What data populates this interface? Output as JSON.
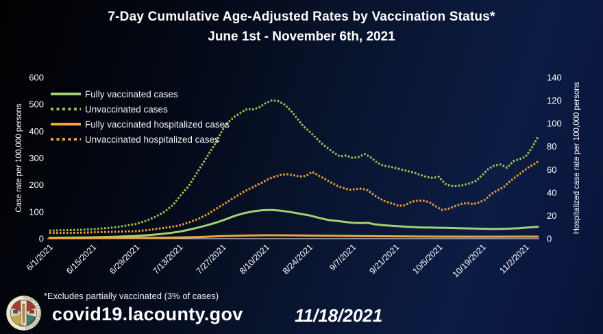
{
  "title": {
    "line1": "7-Day Cumulative Age-Adjusted Rates by Vaccination Status*",
    "line2": "June 1st - November 6th, 2021"
  },
  "footer": {
    "footnote": "*Excludes partially vaccinated (3% of cases)",
    "site": "covid19.lacounty.gov",
    "date": "11/18/2021",
    "seal": {
      "name": "County of Los Angeles seal",
      "text_top": "COUNTY OF LOS ANGELES",
      "text_bottom": "CALIFORNIA"
    }
  },
  "colors": {
    "background_navy": "#0c1c44",
    "background_black": "#010102",
    "text": "#ffffff",
    "axis_line": "#c9cfdf",
    "green_solid": "#a5d075",
    "green_dotted": "#9cc654",
    "orange_solid": "#f0a63c",
    "orange_dotted": "#e9a23a"
  },
  "chart_data": {
    "type": "line",
    "title": "7-Day Cumulative Age-Adjusted Rates by Vaccination Status, June 1st - November 6th, 2021",
    "grid": false,
    "legend_position": "top-left",
    "x_range": [
      "6/1/2021",
      "11/6/2021"
    ],
    "x_tick_labels": [
      "6/1/2021",
      "6/15/2021",
      "6/29/2021",
      "7/13/2021",
      "7/27/2021",
      "8/10/2021",
      "8/24/2021",
      "9/7/2021",
      "9/21/2021",
      "10/5/2021",
      "10/19/2021",
      "11/2/2021"
    ],
    "left_axis": {
      "label": "Case rate per 100,000 persons",
      "min": 0,
      "max": 600,
      "tick_step": 100,
      "ticks": [
        "0",
        "100",
        "200",
        "300",
        "400",
        "500",
        "600"
      ]
    },
    "right_axis": {
      "label": "Hospitalized case rate per 100,000 persons",
      "min": 0,
      "max": 140,
      "tick_step": 20,
      "ticks": [
        "0",
        "20",
        "40",
        "60",
        "80",
        "100",
        "120",
        "140"
      ]
    },
    "series": [
      {
        "name": "Fully vaccinated cases",
        "axis": "left",
        "style": "solid",
        "color": "#a5d075",
        "points": [
          [
            "6/1",
            3
          ],
          [
            "6/8",
            4
          ],
          [
            "6/15",
            5
          ],
          [
            "6/22",
            7
          ],
          [
            "6/29",
            10
          ],
          [
            "7/3",
            13
          ],
          [
            "7/7",
            17
          ],
          [
            "7/10",
            21
          ],
          [
            "7/13",
            26
          ],
          [
            "7/16",
            33
          ],
          [
            "7/19",
            41
          ],
          [
            "7/22",
            50
          ],
          [
            "7/25",
            60
          ],
          [
            "7/28",
            72
          ],
          [
            "7/31",
            85
          ],
          [
            "8/3",
            95
          ],
          [
            "8/6",
            102
          ],
          [
            "8/9",
            106
          ],
          [
            "8/12",
            107
          ],
          [
            "8/15",
            104
          ],
          [
            "8/18",
            99
          ],
          [
            "8/21",
            93
          ],
          [
            "8/24",
            87
          ],
          [
            "8/27",
            78
          ],
          [
            "8/30",
            70
          ],
          [
            "9/2",
            66
          ],
          [
            "9/5",
            62
          ],
          [
            "9/7",
            59
          ],
          [
            "9/10",
            58
          ],
          [
            "9/12",
            59
          ],
          [
            "9/14",
            54
          ],
          [
            "9/17",
            50
          ],
          [
            "9/21",
            47
          ],
          [
            "9/25",
            44
          ],
          [
            "9/29",
            42
          ],
          [
            "10/3",
            41
          ],
          [
            "10/7",
            40
          ],
          [
            "10/11",
            39
          ],
          [
            "10/15",
            38
          ],
          [
            "10/19",
            37
          ],
          [
            "10/23",
            36
          ],
          [
            "10/27",
            37
          ],
          [
            "10/31",
            39
          ],
          [
            "11/3",
            42
          ],
          [
            "11/6",
            44
          ]
        ]
      },
      {
        "name": "Unvaccinated cases",
        "axis": "left",
        "style": "dotted",
        "color": "#9cc654",
        "points": [
          [
            "6/1",
            30
          ],
          [
            "6/4",
            31
          ],
          [
            "6/8",
            32
          ],
          [
            "6/11",
            33
          ],
          [
            "6/15",
            35
          ],
          [
            "6/18",
            38
          ],
          [
            "6/22",
            42
          ],
          [
            "6/25",
            47
          ],
          [
            "6/29",
            55
          ],
          [
            "7/2",
            65
          ],
          [
            "7/5",
            80
          ],
          [
            "7/8",
            98
          ],
          [
            "7/11",
            125
          ],
          [
            "7/13",
            155
          ],
          [
            "7/16",
            195
          ],
          [
            "7/19",
            250
          ],
          [
            "7/22",
            305
          ],
          [
            "7/25",
            360
          ],
          [
            "7/27",
            405
          ],
          [
            "7/29",
            435
          ],
          [
            "7/31",
            455
          ],
          [
            "8/2",
            470
          ],
          [
            "8/4",
            483
          ],
          [
            "8/6",
            481
          ],
          [
            "8/8",
            490
          ],
          [
            "8/10",
            505
          ],
          [
            "8/12",
            515
          ],
          [
            "8/14",
            512
          ],
          [
            "8/16",
            500
          ],
          [
            "8/18",
            478
          ],
          [
            "8/20",
            450
          ],
          [
            "8/22",
            420
          ],
          [
            "8/24",
            400
          ],
          [
            "8/26",
            378
          ],
          [
            "8/28",
            355
          ],
          [
            "8/30",
            338
          ],
          [
            "9/1",
            320
          ],
          [
            "9/3",
            306
          ],
          [
            "9/5",
            309
          ],
          [
            "9/7",
            301
          ],
          [
            "9/9",
            304
          ],
          [
            "9/11",
            315
          ],
          [
            "9/13",
            302
          ],
          [
            "9/15",
            283
          ],
          [
            "9/17",
            272
          ],
          [
            "9/19",
            268
          ],
          [
            "9/21",
            263
          ],
          [
            "9/23",
            257
          ],
          [
            "9/25",
            251
          ],
          [
            "9/27",
            246
          ],
          [
            "9/29",
            237
          ],
          [
            "10/1",
            230
          ],
          [
            "10/3",
            226
          ],
          [
            "10/5",
            230
          ],
          [
            "10/7",
            204
          ],
          [
            "10/9",
            196
          ],
          [
            "10/11",
            196
          ],
          [
            "10/13",
            200
          ],
          [
            "10/15",
            206
          ],
          [
            "10/17",
            215
          ],
          [
            "10/19",
            237
          ],
          [
            "10/21",
            260
          ],
          [
            "10/23",
            273
          ],
          [
            "10/25",
            276
          ],
          [
            "10/27",
            264
          ],
          [
            "10/29",
            288
          ],
          [
            "10/31",
            296
          ],
          [
            "11/2",
            305
          ],
          [
            "11/4",
            338
          ],
          [
            "11/6",
            378
          ]
        ]
      },
      {
        "name": "Fully vaccinated hospitalized cases",
        "axis": "right",
        "style": "solid",
        "color": "#f0a63c",
        "points": [
          [
            "6/1",
            0.3
          ],
          [
            "6/15",
            0.4
          ],
          [
            "6/29",
            0.6
          ],
          [
            "7/13",
            1.0
          ],
          [
            "7/20",
            1.5
          ],
          [
            "7/27",
            2.2
          ],
          [
            "8/3",
            2.7
          ],
          [
            "8/10",
            3.0
          ],
          [
            "8/17",
            2.9
          ],
          [
            "8/24",
            2.7
          ],
          [
            "9/7",
            2.3
          ],
          [
            "9/21",
            2.0
          ],
          [
            "10/5",
            1.8
          ],
          [
            "10/19",
            1.7
          ],
          [
            "11/2",
            1.8
          ],
          [
            "11/6",
            1.8
          ]
        ]
      },
      {
        "name": "Unvaccinated hospitalized cases",
        "axis": "right",
        "style": "dotted",
        "color": "#e9a23a",
        "points": [
          [
            "6/1",
            5
          ],
          [
            "6/8",
            5
          ],
          [
            "6/15",
            5.5
          ],
          [
            "6/22",
            6
          ],
          [
            "6/29",
            6.5
          ],
          [
            "7/3",
            7.5
          ],
          [
            "7/7",
            9
          ],
          [
            "7/10",
            10
          ],
          [
            "7/13",
            11.5
          ],
          [
            "7/16",
            14
          ],
          [
            "7/19",
            17
          ],
          [
            "7/22",
            21
          ],
          [
            "7/25",
            26
          ],
          [
            "7/28",
            31
          ],
          [
            "7/31",
            36
          ],
          [
            "8/3",
            41
          ],
          [
            "8/6",
            45
          ],
          [
            "8/9",
            49
          ],
          [
            "8/11",
            52
          ],
          [
            "8/13",
            54
          ],
          [
            "8/15",
            55.5
          ],
          [
            "8/17",
            56
          ],
          [
            "8/19",
            55
          ],
          [
            "8/21",
            54
          ],
          [
            "8/23",
            54.5
          ],
          [
            "8/25",
            58
          ],
          [
            "8/27",
            55
          ],
          [
            "8/29",
            52
          ],
          [
            "8/31",
            49
          ],
          [
            "9/2",
            46
          ],
          [
            "9/4",
            44
          ],
          [
            "9/6",
            42.5
          ],
          [
            "9/8",
            43
          ],
          [
            "9/10",
            43.5
          ],
          [
            "9/12",
            42
          ],
          [
            "9/14",
            38
          ],
          [
            "9/16",
            34.5
          ],
          [
            "9/18",
            32
          ],
          [
            "9/20",
            30.5
          ],
          [
            "9/22",
            28.5
          ],
          [
            "9/24",
            29
          ],
          [
            "9/26",
            32
          ],
          [
            "9/28",
            33
          ],
          [
            "9/30",
            33
          ],
          [
            "10/2",
            31.5
          ],
          [
            "10/4",
            28
          ],
          [
            "10/6",
            25
          ],
          [
            "10/8",
            26
          ],
          [
            "10/10",
            28
          ],
          [
            "10/12",
            30
          ],
          [
            "10/14",
            31
          ],
          [
            "10/16",
            30
          ],
          [
            "10/18",
            31.5
          ],
          [
            "10/20",
            34
          ],
          [
            "10/22",
            39
          ],
          [
            "10/24",
            42
          ],
          [
            "10/26",
            45
          ],
          [
            "10/28",
            50
          ],
          [
            "10/30",
            54
          ],
          [
            "11/1",
            58
          ],
          [
            "11/3",
            62
          ],
          [
            "11/5",
            65
          ],
          [
            "11/6",
            67
          ]
        ]
      }
    ]
  }
}
